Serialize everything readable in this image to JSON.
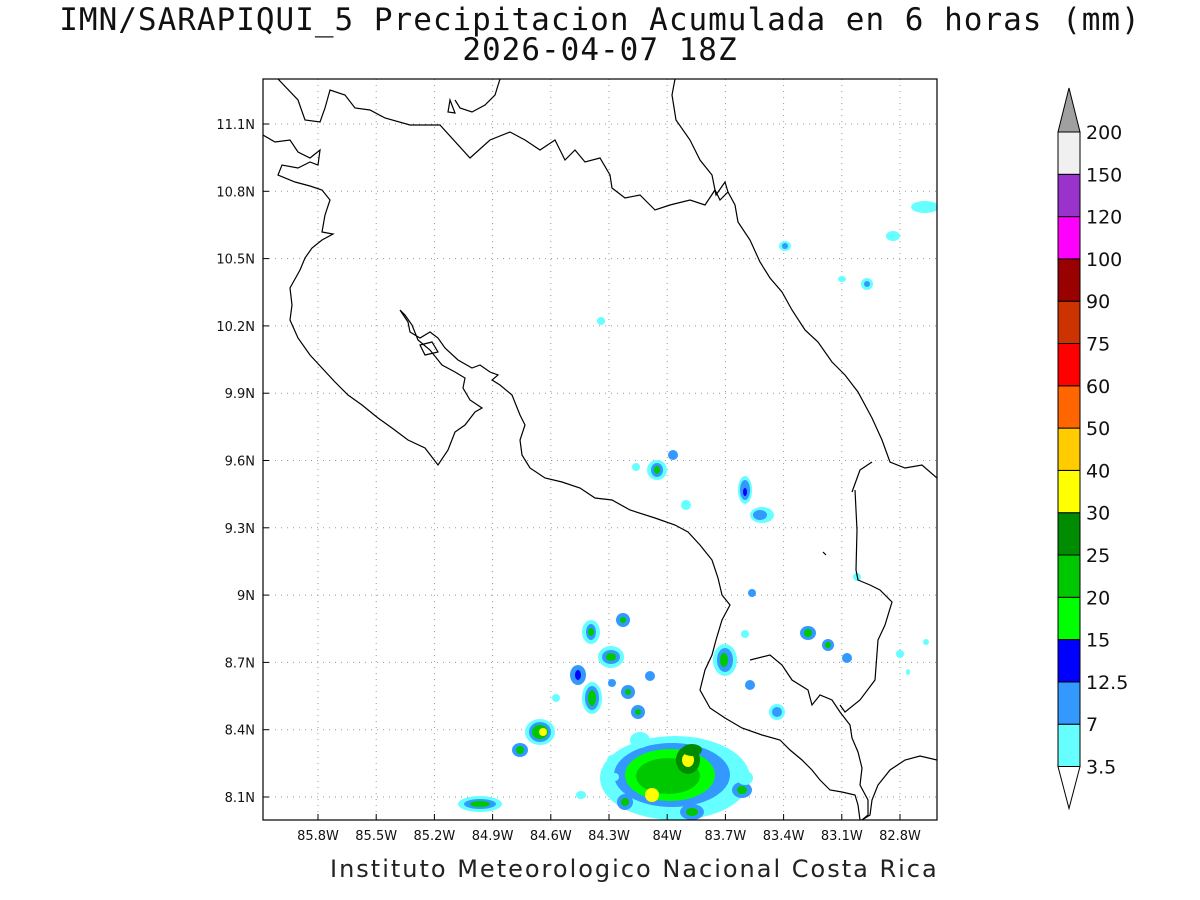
{
  "title_line1": "IMN/SARAPIQUI_5 Precipitacion Acumulada en 6 horas (mm)",
  "title_line2": "2026-04-07 18Z",
  "footer": "Instituto Meteorologico Nacional Costa Rica",
  "x_ticks": [
    "85.8W",
    "85.5W",
    "85.2W",
    "84.9W",
    "84.6W",
    "84.3W",
    "84W",
    "83.7W",
    "83.4W",
    "83.1W",
    "82.8W"
  ],
  "y_ticks": [
    "11.1N",
    "10.8N",
    "10.5N",
    "10.2N",
    "9.9N",
    "9.6N",
    "9.3N",
    "9N",
    "8.7N",
    "8.4N",
    "8.1N"
  ],
  "colorbar": {
    "labels": [
      "3.5",
      "7",
      "12.5",
      "15",
      "20",
      "25",
      "30",
      "40",
      "50",
      "60",
      "75",
      "90",
      "100",
      "120",
      "150",
      "200"
    ],
    "colors": [
      "#66ffff",
      "#3399ff",
      "#0000ff",
      "#00ff00",
      "#00c800",
      "#008c00",
      "#ffff00",
      "#ffcc00",
      "#ff6600",
      "#ff0000",
      "#cc3300",
      "#990000",
      "#ff00ff",
      "#9933cc",
      "#f0f0f0"
    ],
    "over_color": "#a0a0a0",
    "under_color": "#ffffff"
  }
}
